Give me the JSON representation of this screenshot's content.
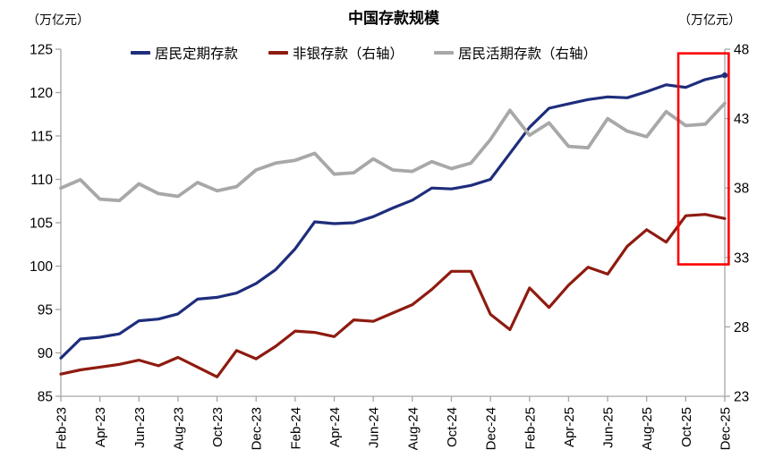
{
  "chart": {
    "title": "中国存款规模",
    "left_unit_label": "（万亿元）",
    "right_unit_label": "（万亿元）",
    "colors": {
      "axis": "#a6a6a6",
      "tick_label": "#000000",
      "highlight_box": "#fe0000",
      "background": "#ffffff"
    }
  },
  "chart_data": {
    "type": "line",
    "title": "中国存款规模",
    "grid": false,
    "legend_position": "top",
    "x": [
      "Feb-23",
      "Mar-23",
      "Apr-23",
      "May-23",
      "Jun-23",
      "Jul-23",
      "Aug-23",
      "Sep-23",
      "Oct-23",
      "Nov-23",
      "Dec-23",
      "Jan-24",
      "Feb-24",
      "Mar-24",
      "Apr-24",
      "May-24",
      "Jun-24",
      "Jul-24",
      "Aug-24",
      "Sep-24",
      "Oct-24",
      "Nov-24",
      "Dec-24",
      "Jan-25",
      "Feb-25",
      "Mar-25",
      "Apr-25",
      "May-25",
      "Jun-25",
      "Jul-25",
      "Aug-25",
      "Sep-25",
      "Oct-25",
      "Nov-25",
      "Dec-25"
    ],
    "x_tick_labels": [
      "Feb-23",
      "Apr-23",
      "Jun-23",
      "Aug-23",
      "Oct-23",
      "Dec-23",
      "Feb-24",
      "Apr-24",
      "Jun-24",
      "Aug-24",
      "Oct-24",
      "Dec-24",
      "Feb-25",
      "Apr-25",
      "Jun-25",
      "Aug-25",
      "Oct-25",
      "Dec-25"
    ],
    "left_axis": {
      "unit": "万亿元",
      "min": 85,
      "max": 125,
      "ticks": [
        125,
        120,
        115,
        110,
        105,
        100,
        95,
        90,
        85
      ]
    },
    "right_axis": {
      "unit": "万亿元",
      "min": 23,
      "max": 48,
      "ticks": [
        48,
        43,
        38,
        33,
        28,
        23
      ]
    },
    "series": [
      {
        "name": "居民定期存款",
        "axis": "left",
        "color": "#1e2d7c",
        "line_width": 3.2,
        "end_dot": true,
        "values": [
          89.4,
          91.6,
          91.8,
          92.2,
          93.7,
          93.9,
          94.5,
          96.2,
          96.4,
          96.9,
          98.0,
          99.6,
          102.0,
          105.1,
          104.9,
          105.0,
          105.7,
          106.7,
          107.6,
          109.0,
          108.9,
          109.3,
          110.0,
          113.0,
          116.0,
          118.2,
          118.7,
          119.2,
          119.5,
          119.4,
          120.1,
          120.9,
          120.6,
          121.5,
          122.0
        ]
      },
      {
        "name": "非银存款（右轴）",
        "axis": "right",
        "color": "#8e1b10",
        "line_width": 3.2,
        "end_dot": false,
        "values": [
          24.6,
          24.9,
          25.1,
          25.3,
          25.6,
          25.2,
          25.8,
          25.1,
          24.4,
          26.3,
          25.7,
          26.6,
          27.7,
          27.6,
          27.3,
          28.5,
          28.4,
          29.0,
          29.6,
          30.7,
          32.0,
          32.0,
          28.9,
          27.8,
          30.8,
          29.4,
          31.0,
          32.3,
          31.8,
          33.8,
          35.0,
          34.1,
          36.0,
          36.1,
          35.8
        ]
      },
      {
        "name": "居民活期存款（右轴）",
        "axis": "right",
        "color": "#a8a8a8",
        "line_width": 3.8,
        "end_dot": false,
        "values": [
          38.0,
          38.6,
          37.2,
          37.1,
          38.3,
          37.6,
          37.4,
          38.4,
          37.8,
          38.1,
          39.3,
          39.8,
          40.0,
          40.5,
          39.0,
          39.1,
          40.1,
          39.3,
          39.2,
          39.9,
          39.4,
          39.8,
          41.5,
          43.6,
          41.8,
          42.7,
          41.0,
          40.9,
          43.0,
          42.1,
          41.7,
          43.5,
          42.5,
          42.6,
          44.1
        ]
      }
    ],
    "highlight_box": {
      "color": "#fe0000",
      "x_from_index": 31.62,
      "x_to_index": 34.2,
      "y_from_right_value": 32.5,
      "y_to_right_value": 47.7,
      "note_visible_text": ""
    }
  }
}
